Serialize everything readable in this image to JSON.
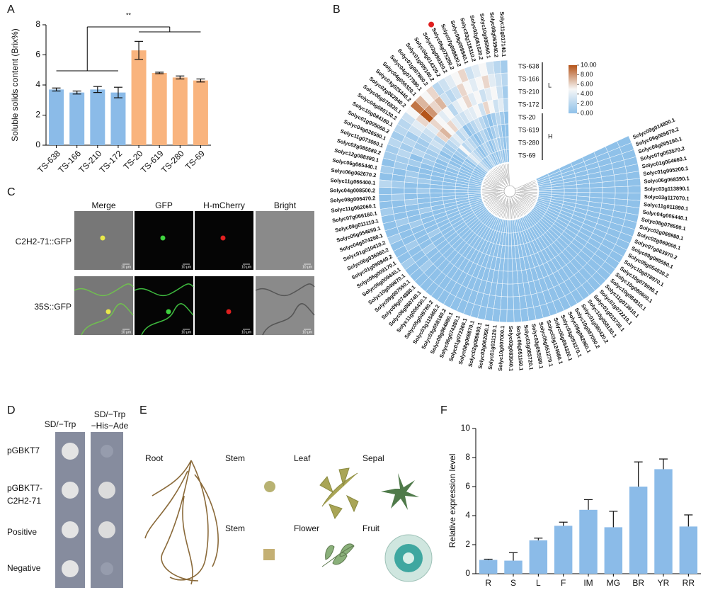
{
  "panel_labels": [
    "A",
    "B",
    "C",
    "D",
    "E",
    "F"
  ],
  "chart_data": [
    {
      "type": "bar",
      "ylabel": "Soluble solids content (Brix%)",
      "annotation": "**",
      "categories": [
        "TS-638",
        "TS-166",
        "TS-210",
        "TS-172",
        "TS-20",
        "TS-619",
        "TS-280",
        "TS-69"
      ],
      "values": [
        3.7,
        3.5,
        3.7,
        3.5,
        6.3,
        4.8,
        4.5,
        4.3
      ],
      "errors": [
        0.1,
        0.1,
        0.2,
        0.35,
        0.6,
        0.05,
        0.1,
        0.1
      ],
      "colors": [
        "#8bbbe8",
        "#8bbbe8",
        "#8bbbe8",
        "#8bbbe8",
        "#f9b47e",
        "#f9b47e",
        "#f9b47e",
        "#f9b47e"
      ],
      "ylim": [
        0,
        8
      ],
      "yticks": [
        0,
        2,
        4,
        6,
        8
      ]
    },
    {
      "type": "heatmap",
      "groups": [
        "L",
        "H"
      ],
      "highlight": "Solyc06g075250.2",
      "highlight_color": "#e02020",
      "clim": [
        0,
        10
      ],
      "colormap": [
        "#8fc1e9",
        "#f7f7f7",
        "#b4541a"
      ],
      "colorbar_ticks": [
        {
          "value": 10,
          "label": "10.00"
        },
        {
          "value": 8,
          "label": "8.00"
        },
        {
          "value": 6,
          "label": "6.00"
        },
        {
          "value": 4,
          "label": "4.00"
        },
        {
          "value": 2,
          "label": "2.00"
        },
        {
          "value": 0,
          "label": "0.00"
        }
      ],
      "categories": [
        "Solyc11g017140.1",
        "Solyc08g063940.2",
        "Solyc10g085560.1",
        "Solyc02g081620.2",
        "Solyc03g118310.2",
        "Solyc09g008840.1",
        "Solyc07g008820.2",
        "Solyc06g075250.2",
        "Solyc02g090320.2",
        "Solyc04g014320.2",
        "Solyc01g095140.2",
        "Solyc01g007800.2",
        "Solyc04g077980.1",
        "Solyc04g056320.1",
        "Solyc03g025440.2",
        "Solyc02g062940.2",
        "Solyc06g076820.1",
        "Solyc04g080130.2",
        "Solyc10g084180.1",
        "Solyc01g005060.2",
        "Solyc04g026560.1",
        "Solyc11g073060.1",
        "Solyc02g085580.2",
        "Solyc12g088390.1",
        "Solyc06g065440.1",
        "Solyc06g062670.2",
        "Solyc11g066400.1",
        "Solyc04g008500.2",
        "Solyc08g006470.2",
        "Solyc11g062060.1",
        "Solyc07g066160.1",
        "Solyc09g011110.1",
        "Solyc05g054650.1",
        "Solyc04g074250.1",
        "Solyc01g010410.2",
        "Solyc06g036060.2",
        "Solyc01g090840.2",
        "Solyc06g009170.1",
        "Solyc05g009440.1",
        "Solyc10g049870.1",
        "Solyc09g007550.1",
        "Solyc09g074880.1",
        "Solyc06g060740.1",
        "Solyc11g006430.1",
        "Solyc05g049780.2",
        "Solyc03g115460.2",
        "Solyc03g058160.2",
        "Solyc09g064880.1",
        "Solyc06g074380.1",
        "Solyc01g072360.1",
        "Solyc08g068870.1",
        "Solyc02g089600.1",
        "Solyc03g062050.1",
        "Solyc01g011120.1",
        "Solyc10g007000.1",
        "Solyc03g083940.1",
        "Solyc06g051160.1",
        "Solyc03g083720.1",
        "Solyc03g055580.1",
        "Solyc05g051270.1",
        "Solyc03g124980.1",
        "Solyc05g054320.1",
        "Solyc03g093270.1",
        "Solyc08g082960.1",
        "Solyc10g087050.2",
        "Solyc01g080420.2",
        "Solyc10g058130.1",
        "Solyc01g015730.1",
        "Solyc01g072210.1",
        "Solyc11g013610.1",
        "Solyc10g084910.1",
        "Solyc10g080600.1",
        "Solyc10g079990.1",
        "Solyc10g078970.1",
        "Solyc05g054030.2",
        "Solyc09g089590.1",
        "Solyc07g063970.2",
        "Solyc02g069000.1",
        "Solyc02g068980.1",
        "Solyc08g078590.1",
        "Solyc04g005440.1",
        "Solyc11g011890.1",
        "Solyc03g117070.1",
        "Solyc03g113890.1",
        "Solyc06g068390.1",
        "Solyc01g005200.1",
        "Solyc01g054660.1",
        "Solyc07g053570.2",
        "Solyc09g005190.1",
        "Solyc09g065670.2",
        "Solyc09g014800.1"
      ],
      "series": [
        {
          "name": "TS-638",
          "values": [
            1,
            2,
            3,
            5,
            4,
            3,
            6,
            5,
            4,
            3,
            2,
            6,
            5,
            7,
            9,
            5,
            3,
            2,
            2,
            1,
            2,
            1,
            1,
            0,
            1,
            0,
            2,
            0,
            0,
            0,
            1,
            0,
            0,
            0,
            1,
            0,
            0,
            0,
            1,
            0,
            0,
            0,
            0,
            0,
            0,
            0,
            0,
            0,
            0,
            0,
            0,
            0,
            0,
            0,
            0,
            0,
            0,
            0,
            0,
            0,
            0,
            0,
            0,
            0,
            0,
            0,
            0,
            0,
            0,
            0,
            0,
            0,
            0,
            0,
            0,
            0,
            0,
            0,
            0,
            0,
            0,
            0,
            0,
            0,
            0,
            0,
            0,
            0,
            0,
            0,
            0
          ]
        },
        {
          "name": "TS-166",
          "values": [
            2,
            3,
            4,
            6,
            5,
            4,
            5,
            6,
            3,
            2,
            3,
            7,
            6,
            8,
            10,
            6,
            4,
            3,
            1,
            2,
            1,
            2,
            1,
            1,
            0,
            0,
            1,
            0,
            1,
            0,
            0,
            0,
            1,
            0,
            0,
            0,
            1,
            0,
            0,
            0,
            1,
            0,
            0,
            0,
            0,
            0,
            0,
            0,
            0,
            0,
            0,
            0,
            0,
            0,
            0,
            0,
            0,
            0,
            0,
            0,
            0,
            0,
            0,
            0,
            0,
            0,
            0,
            0,
            0,
            0,
            0,
            0,
            0,
            0,
            0,
            0,
            0,
            0,
            0,
            0,
            0,
            0,
            0,
            0,
            0,
            0,
            0,
            0,
            0,
            0,
            0
          ]
        },
        {
          "name": "TS-210",
          "values": [
            1,
            3,
            5,
            4,
            3,
            5,
            4,
            6,
            5,
            4,
            2,
            5,
            4,
            5,
            6,
            4,
            3,
            2,
            1,
            1,
            2,
            0,
            1,
            0,
            1,
            1,
            0,
            0,
            0,
            1,
            0,
            0,
            0,
            1,
            0,
            0,
            0,
            0,
            1,
            0,
            0,
            0,
            0,
            0,
            0,
            0,
            0,
            0,
            0,
            0,
            0,
            0,
            0,
            0,
            0,
            0,
            0,
            0,
            0,
            0,
            0,
            0,
            0,
            0,
            0,
            0,
            0,
            0,
            0,
            0,
            0,
            0,
            0,
            0,
            0,
            0,
            0,
            0,
            0,
            0,
            0,
            0,
            0,
            0,
            0,
            0,
            0,
            0,
            0,
            0,
            0
          ]
        },
        {
          "name": "TS-172",
          "values": [
            2,
            4,
            3,
            5,
            6,
            3,
            5,
            4,
            4,
            3,
            3,
            4,
            6,
            5,
            7,
            6,
            2,
            3,
            2,
            1,
            1,
            1,
            0,
            0,
            0,
            1,
            0,
            1,
            0,
            0,
            0,
            1,
            0,
            0,
            0,
            0,
            1,
            0,
            0,
            0,
            0,
            0,
            0,
            0,
            0,
            0,
            0,
            0,
            0,
            0,
            0,
            0,
            0,
            0,
            0,
            0,
            0,
            0,
            0,
            0,
            0,
            0,
            0,
            0,
            0,
            0,
            0,
            0,
            0,
            0,
            0,
            0,
            0,
            0,
            0,
            0,
            0,
            0,
            0,
            0,
            0,
            0,
            0,
            0,
            0,
            0,
            0,
            0,
            0,
            0,
            0
          ]
        },
        {
          "name": "TS-20",
          "values": [
            0,
            1,
            2,
            1,
            0,
            1,
            2,
            3,
            2,
            1,
            0,
            3,
            2,
            4,
            3,
            2,
            1,
            1,
            0,
            1,
            0,
            0,
            0,
            0,
            0,
            0,
            0,
            0,
            0,
            0,
            0,
            0,
            0,
            0,
            0,
            0,
            0,
            0,
            0,
            0,
            0,
            0,
            0,
            0,
            0,
            0,
            0,
            0,
            0,
            0,
            0,
            0,
            0,
            0,
            0,
            0,
            0,
            0,
            0,
            0,
            0,
            0,
            0,
            0,
            0,
            0,
            0,
            0,
            0,
            0,
            0,
            0,
            0,
            0,
            0,
            0,
            0,
            0,
            0,
            0,
            0,
            0,
            0,
            0,
            0,
            0,
            0,
            0,
            0,
            0,
            0
          ]
        },
        {
          "name": "TS-619",
          "values": [
            0,
            0,
            1,
            2,
            1,
            0,
            1,
            2,
            1,
            0,
            1,
            2,
            3,
            2,
            5,
            1,
            1,
            0,
            0,
            0,
            1,
            0,
            0,
            0,
            0,
            0,
            0,
            0,
            0,
            0,
            0,
            0,
            0,
            0,
            0,
            0,
            0,
            0,
            0,
            0,
            0,
            0,
            0,
            0,
            0,
            0,
            0,
            0,
            0,
            0,
            0,
            0,
            0,
            0,
            0,
            0,
            0,
            0,
            0,
            0,
            0,
            0,
            0,
            0,
            0,
            0,
            0,
            0,
            0,
            0,
            0,
            0,
            0,
            0,
            0,
            0,
            0,
            0,
            0,
            0,
            0,
            0,
            0,
            0,
            0,
            0,
            0,
            0,
            0,
            0,
            0
          ]
        },
        {
          "name": "TS-280",
          "values": [
            1,
            0,
            1,
            1,
            2,
            1,
            0,
            1,
            2,
            1,
            0,
            1,
            2,
            3,
            4,
            2,
            0,
            1,
            0,
            0,
            0,
            0,
            0,
            0,
            0,
            0,
            0,
            0,
            0,
            0,
            0,
            0,
            0,
            0,
            0,
            0,
            0,
            0,
            0,
            0,
            0,
            0,
            0,
            0,
            0,
            0,
            0,
            0,
            0,
            0,
            0,
            0,
            0,
            0,
            0,
            0,
            0,
            0,
            0,
            0,
            0,
            0,
            0,
            0,
            0,
            0,
            0,
            0,
            0,
            0,
            0,
            0,
            0,
            0,
            0,
            0,
            0,
            0,
            0,
            0,
            0,
            0,
            0,
            0,
            0,
            0,
            0,
            0,
            0,
            0,
            0
          ]
        },
        {
          "name": "TS-69",
          "values": [
            0,
            1,
            0,
            1,
            1,
            0,
            1,
            0,
            1,
            2,
            1,
            0,
            1,
            2,
            3,
            1,
            0,
            0,
            0,
            0,
            0,
            0,
            0,
            0,
            0,
            0,
            0,
            0,
            0,
            0,
            0,
            0,
            0,
            0,
            0,
            0,
            0,
            0,
            0,
            0,
            0,
            0,
            0,
            0,
            0,
            0,
            0,
            0,
            0,
            0,
            0,
            0,
            0,
            0,
            0,
            0,
            0,
            0,
            0,
            0,
            0,
            0,
            0,
            0,
            0,
            0,
            0,
            0,
            0,
            0,
            0,
            0,
            0,
            0,
            0,
            0,
            0,
            0,
            0,
            0,
            0,
            0,
            0,
            0,
            0,
            0,
            0,
            0,
            0,
            0,
            0
          ]
        }
      ]
    },
    {
      "type": "bar",
      "ylabel": "Relative expression level",
      "categories": [
        "R",
        "S",
        "L",
        "F",
        "IM",
        "MG",
        "BR",
        "YR",
        "RR"
      ],
      "values": [
        0.95,
        0.9,
        2.3,
        3.3,
        4.4,
        3.2,
        6.0,
        7.2,
        3.25
      ],
      "errors": [
        0.05,
        0.55,
        0.15,
        0.25,
        0.7,
        1.1,
        1.7,
        0.7,
        0.8
      ],
      "color": "#8bbbe8",
      "ylim": [
        0,
        10
      ],
      "yticks": [
        0,
        2,
        4,
        6,
        8,
        10
      ]
    }
  ],
  "panel_c": {
    "columns": [
      "Merge",
      "GFP",
      "H-mCherry",
      "Bright"
    ],
    "rows": [
      "C2H2-71::GFP",
      "35S::GFP"
    ],
    "scale_bar": "10 μm"
  },
  "panel_d": {
    "columns": [
      [
        "SD/−Trp"
      ],
      [
        "SD/−Trp",
        "−His−Ade"
      ]
    ],
    "rows": [
      [
        "pGBKT7"
      ],
      [
        "pGBKT7-",
        "C2H2-71"
      ],
      [
        "Positive"
      ],
      [
        "Negative"
      ]
    ]
  },
  "panel_e": {
    "labels": [
      "Root",
      "Stem",
      "Leaf",
      "Sepal",
      "Stem",
      "Flower",
      "Fruit"
    ]
  }
}
